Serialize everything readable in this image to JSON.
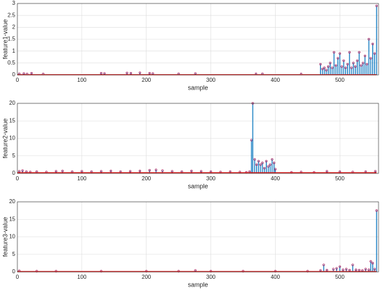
{
  "chart_data": [
    {
      "type": "stem",
      "xlabel": "sample",
      "ylabel": "feature1-value",
      "xlim": [
        0,
        560
      ],
      "ylim": [
        0,
        3
      ],
      "xticks": [
        0,
        100,
        200,
        300,
        400,
        500
      ],
      "yticks": [
        0,
        0.5,
        1,
        1.5,
        2,
        2.5,
        3
      ],
      "grid": true,
      "series": [
        {
          "color": "#0072bd",
          "marker_color": "#b0306a",
          "x": [
            3,
            10,
            15,
            22,
            40,
            130,
            135,
            170,
            176,
            190,
            205,
            210,
            250,
            276,
            370,
            380,
            440,
            470,
            473,
            476,
            479,
            482,
            485,
            488,
            491,
            494,
            497,
            500,
            503,
            506,
            509,
            512,
            515,
            518,
            521,
            524,
            527,
            530,
            533,
            536,
            539,
            542,
            545,
            548,
            551,
            554,
            557
          ],
          "values": [
            0.05,
            0.06,
            0.04,
            0.07,
            0.04,
            0.07,
            0.06,
            0.08,
            0.07,
            0.09,
            0.07,
            0.06,
            0.05,
            0.06,
            0.05,
            0.05,
            0.04,
            0.45,
            0.25,
            0.3,
            0.2,
            0.35,
            0.5,
            0.3,
            0.95,
            0.4,
            0.7,
            0.9,
            0.35,
            0.6,
            0.3,
            0.45,
            0.95,
            0.3,
            0.5,
            0.35,
            0.6,
            0.95,
            0.4,
            0.5,
            0.8,
            0.45,
            1.5,
            0.7,
            1.3,
            0.9,
            2.9
          ]
        },
        {
          "style": "line",
          "color": "#e02020",
          "x": [
            0,
            557
          ],
          "values": [
            0.01,
            0.01
          ]
        }
      ]
    },
    {
      "type": "stem",
      "xlabel": "sample",
      "ylabel": "feature2-value",
      "xlim": [
        0,
        560
      ],
      "ylim": [
        0,
        20
      ],
      "xticks": [
        0,
        100,
        200,
        300,
        400,
        500
      ],
      "yticks": [
        0,
        5,
        10,
        15,
        20
      ],
      "grid": true,
      "series": [
        {
          "color": "#0072bd",
          "marker_color": "#b0306a",
          "x": [
            3,
            8,
            14,
            20,
            30,
            45,
            60,
            70,
            85,
            100,
            115,
            130,
            145,
            160,
            175,
            190,
            205,
            215,
            225,
            240,
            255,
            270,
            285,
            300,
            315,
            330,
            345,
            355,
            360,
            363,
            365,
            368,
            371,
            374,
            377,
            380,
            383,
            386,
            389,
            392,
            395,
            398,
            400,
            425,
            440,
            460,
            480,
            500,
            520,
            540,
            555
          ],
          "values": [
            0.6,
            0.8,
            0.5,
            0.4,
            0.5,
            0.4,
            0.6,
            0.7,
            0.5,
            0.6,
            0.5,
            0.6,
            0.7,
            0.5,
            0.6,
            0.7,
            0.9,
            1.0,
            0.8,
            0.6,
            0.5,
            0.7,
            0.6,
            0.5,
            0.4,
            0.5,
            0.4,
            0.3,
            0.5,
            9.5,
            20,
            4,
            2.5,
            3.5,
            2.5,
            3,
            1.5,
            3.5,
            2,
            2.5,
            4,
            3,
            1.2,
            0.3,
            0.4,
            0.3,
            0.6,
            0.5,
            0.4,
            0.5,
            0.6
          ]
        },
        {
          "style": "line",
          "color": "#e02020",
          "x": [
            0,
            557
          ],
          "values": [
            0.2,
            0.2
          ]
        }
      ]
    },
    {
      "type": "stem",
      "xlabel": "sample",
      "ylabel": "feature3-value",
      "xlim": [
        0,
        560
      ],
      "ylim": [
        0,
        20
      ],
      "xticks": [
        0,
        100,
        200,
        300,
        400,
        500
      ],
      "yticks": [
        0,
        5,
        10,
        15,
        20
      ],
      "grid": true,
      "series": [
        {
          "color": "#0072bd",
          "marker_color": "#b0306a",
          "x": [
            3,
            30,
            60,
            130,
            200,
            250,
            276,
            300,
            350,
            400,
            450,
            470,
            475,
            480,
            490,
            495,
            500,
            505,
            510,
            515,
            520,
            525,
            530,
            535,
            540,
            545,
            548,
            551,
            554,
            557
          ],
          "values": [
            0.3,
            0.2,
            0.2,
            0.2,
            0.2,
            0.2,
            0.4,
            0.2,
            0.2,
            0.2,
            0.2,
            0.4,
            2,
            0.5,
            0.8,
            1,
            1.5,
            0.6,
            0.8,
            0.5,
            2,
            0.6,
            0.5,
            0.4,
            0.8,
            0.6,
            3,
            2.5,
            0.8,
            17.5
          ]
        },
        {
          "style": "line",
          "color": "#e02020",
          "x": [
            0,
            557
          ],
          "values": [
            0.1,
            0.1
          ]
        }
      ]
    }
  ]
}
